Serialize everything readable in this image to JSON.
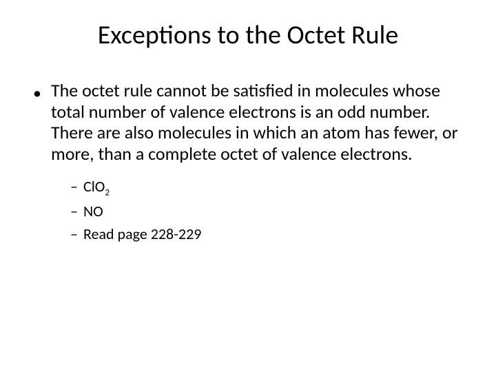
{
  "slide": {
    "background_color": "#ffffff",
    "outer_border_color": "#1f4e79",
    "title": {
      "text": "Exceptions to the Octet Rule",
      "font_size": 38,
      "color": "#000000",
      "align": "center"
    },
    "body": {
      "font_size": 26,
      "color": "#000000",
      "bullet_marker": "•",
      "main_text": "The octet rule cannot be satisfied in molecules whose total number of valence electrons is an odd number.  There are also molecules in which an atom has fewer, or more, than a complete octet of valence electrons.",
      "sub_bullets": {
        "marker": "–",
        "font_size": 22,
        "items": [
          {
            "prefix": "Cl",
            "middle": "O",
            "subscript": "2"
          },
          {
            "text": "NO"
          },
          {
            "text": "Read page 228-229"
          }
        ]
      }
    }
  }
}
